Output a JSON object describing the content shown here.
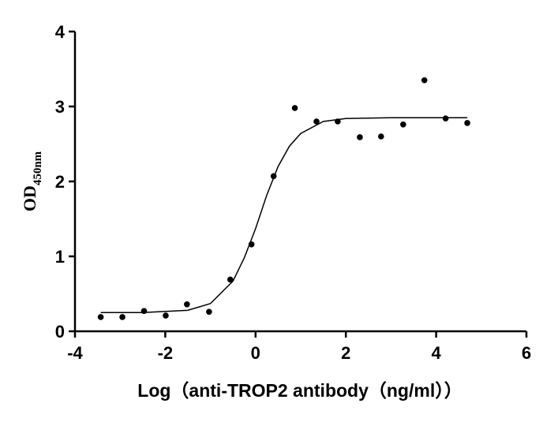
{
  "chart_data": {
    "type": "scatter",
    "xlabel": "Log（anti-TROP2 antibody（ng/ml））",
    "ylabel": "OD",
    "ylabel_subscript": "450nm",
    "xlim": [
      -4,
      6
    ],
    "ylim": [
      0,
      4
    ],
    "xticks": [
      -4,
      -2,
      0,
      2,
      4,
      6
    ],
    "yticks": [
      0,
      1,
      2,
      3,
      4
    ],
    "series": [
      {
        "type": "scatter",
        "color": "#000000",
        "x": [
          -3.43,
          -2.95,
          -2.47,
          -1.99,
          -1.52,
          -1.03,
          -0.56,
          -0.09,
          0.4,
          0.87,
          1.35,
          1.82,
          2.31,
          2.78,
          3.27,
          3.74,
          4.21,
          4.69
        ],
        "values": [
          0.19,
          0.19,
          0.27,
          0.21,
          0.36,
          0.26,
          0.69,
          1.16,
          2.07,
          2.98,
          2.8,
          2.8,
          2.59,
          2.6,
          2.76,
          3.35,
          2.84,
          2.78
        ]
      },
      {
        "type": "line",
        "color": "#000000",
        "x": [
          -3.43,
          -2.5,
          -1.5,
          -1.0,
          -0.5,
          -0.25,
          0,
          0.25,
          0.5,
          0.75,
          1.0,
          1.5,
          2.0,
          3.0,
          4.69
        ],
        "values": [
          0.25,
          0.25,
          0.28,
          0.37,
          0.67,
          0.98,
          1.37,
          1.82,
          2.2,
          2.47,
          2.64,
          2.8,
          2.84,
          2.85,
          2.85
        ]
      }
    ]
  }
}
